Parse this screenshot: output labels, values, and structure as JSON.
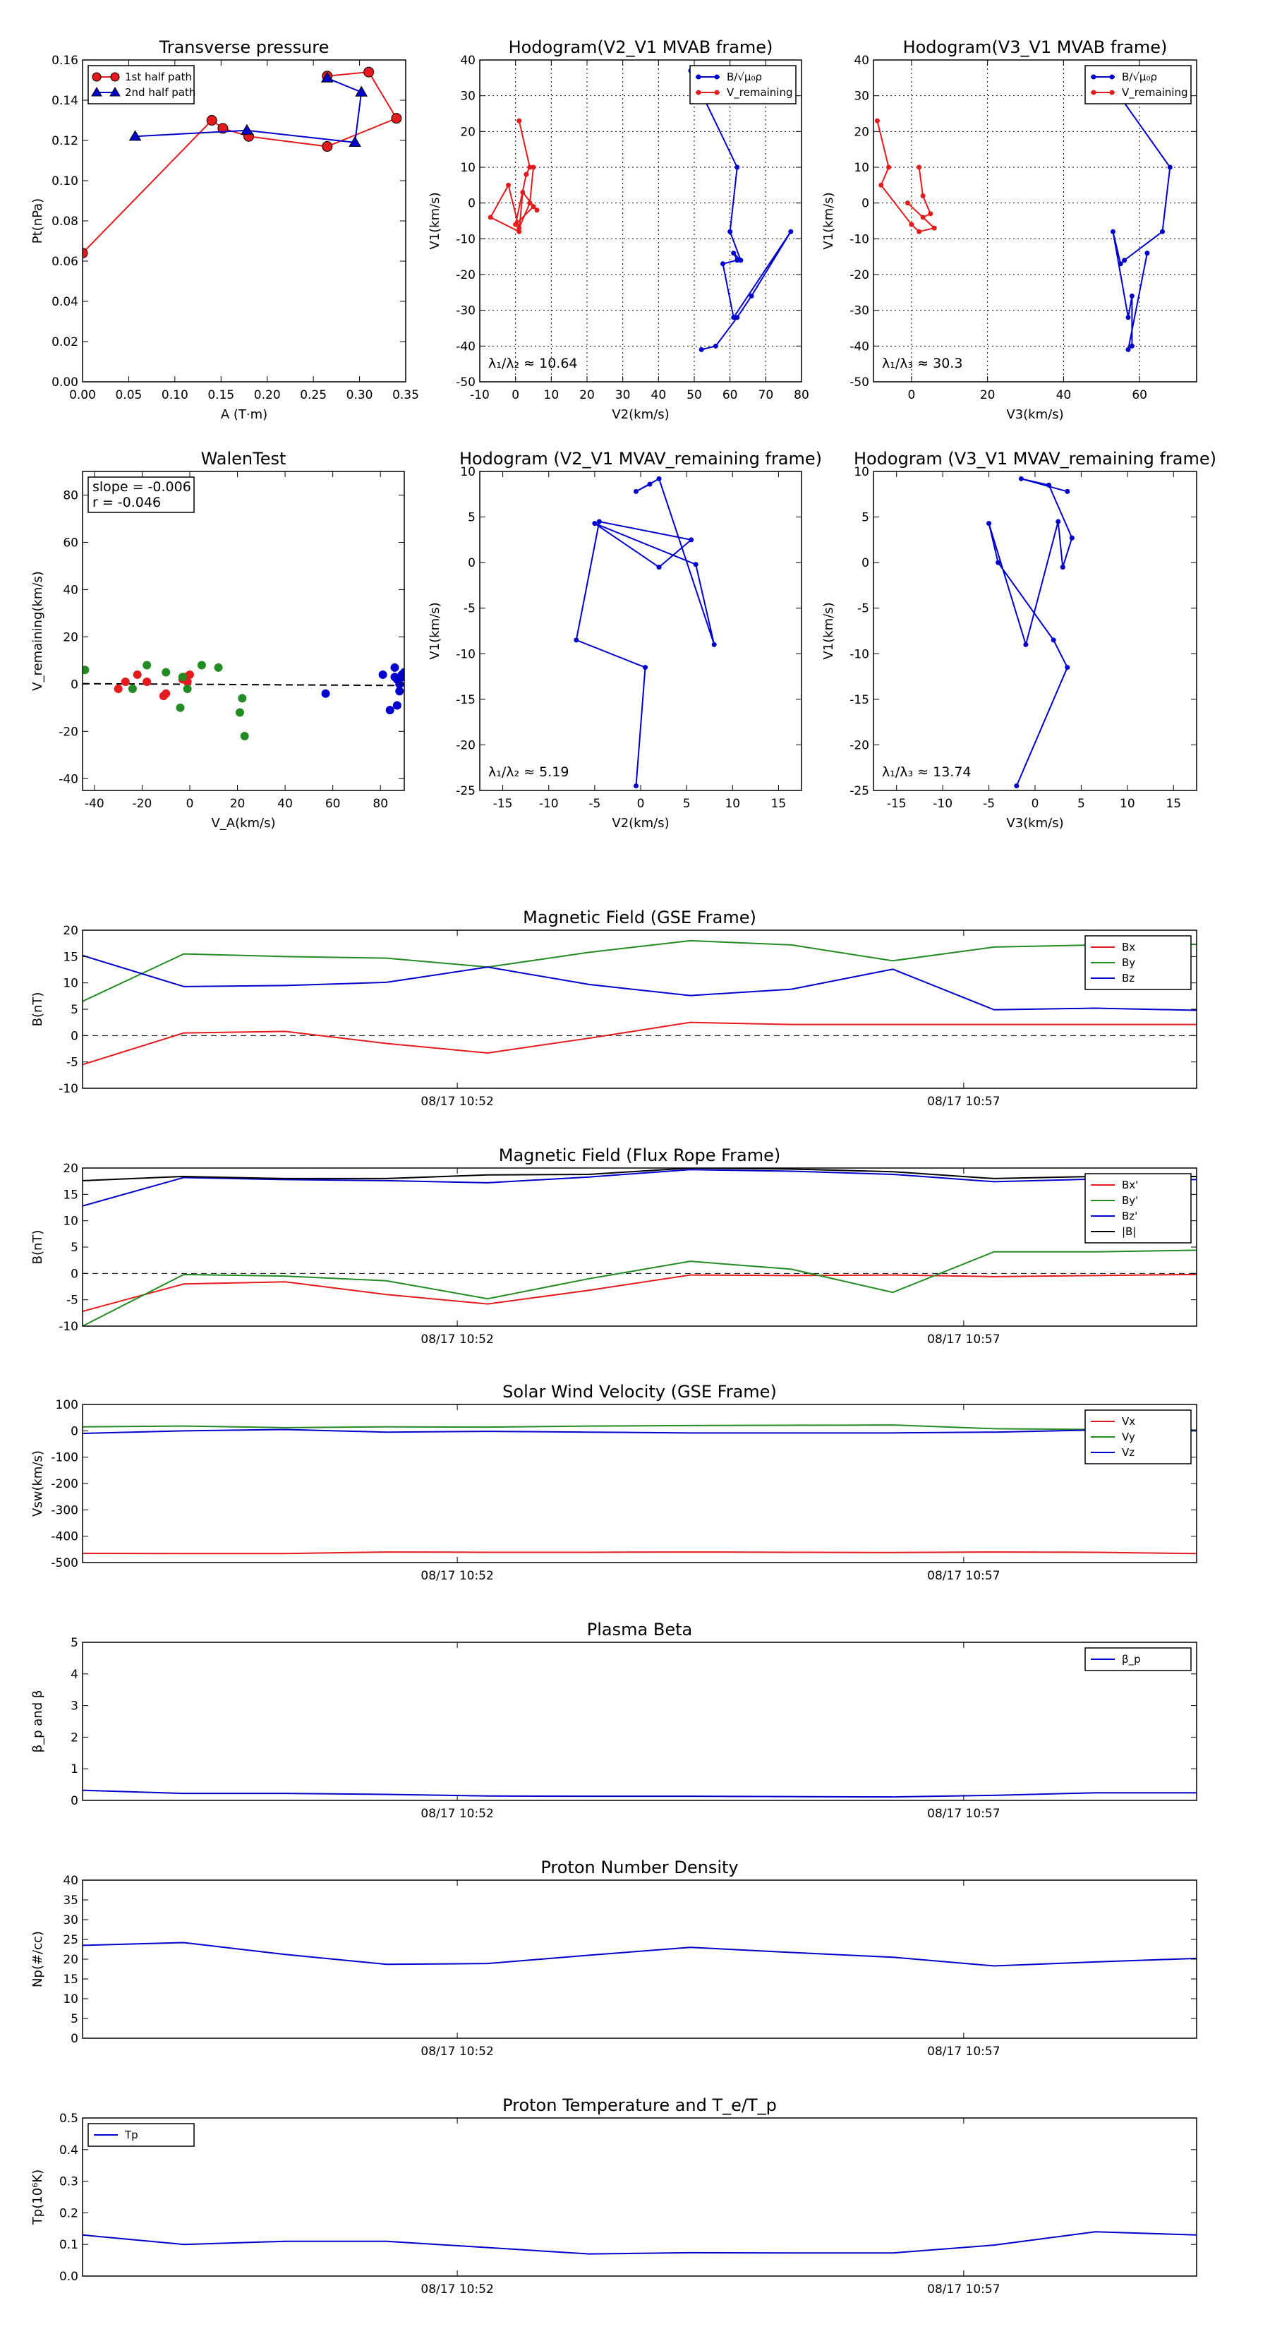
{
  "chart_data": [
    {
      "type": "line",
      "title": "Transverse pressure",
      "xlabel": "A (T·m)",
      "ylabel": "Pt(nPa)",
      "xlim": [
        0,
        0.35
      ],
      "ylim": [
        0,
        0.16
      ],
      "xticks": [
        0,
        0.05,
        0.1,
        0.15,
        0.2,
        0.25,
        0.3,
        0.35
      ],
      "yticks": [
        0,
        0.02,
        0.04,
        0.06,
        0.08,
        0.1,
        0.12,
        0.14,
        0.16
      ],
      "xtick_labels": [
        "0.00",
        "0.05",
        "0.10",
        "0.15",
        "0.20",
        "0.25",
        "0.30",
        "0.35"
      ],
      "ytick_labels": [
        "0.00",
        "0.02",
        "0.04",
        "0.06",
        "0.08",
        "0.10",
        "0.12",
        "0.14",
        "0.16"
      ],
      "grid": false,
      "legend": "upper-left",
      "series": [
        {
          "name": "1st half path",
          "color": "#e41a1c",
          "marker": "circle",
          "line": true,
          "x": [
            0.0,
            0.14,
            0.152,
            0.18,
            0.265,
            0.34,
            0.31,
            0.265
          ],
          "y": [
            0.064,
            0.13,
            0.126,
            0.122,
            0.117,
            0.131,
            0.154,
            0.152
          ]
        },
        {
          "name": "2nd half path",
          "color": "#0000cc",
          "marker": "triangle",
          "line": true,
          "x": [
            0.057,
            0.178,
            0.295,
            0.302,
            0.265
          ],
          "y": [
            0.122,
            0.125,
            0.119,
            0.144,
            0.151
          ]
        }
      ]
    },
    {
      "type": "line",
      "title": "Hodogram(V2_V1 MVAB frame)",
      "xlabel": "V2(km/s)",
      "ylabel": "V1(km/s)",
      "xlim": [
        -10,
        80
      ],
      "ylim": [
        -50,
        40
      ],
      "xticks": [
        -10,
        0,
        10,
        20,
        30,
        40,
        50,
        60,
        70,
        80
      ],
      "yticks": [
        -50,
        -40,
        -30,
        -20,
        -10,
        0,
        10,
        20,
        30,
        40
      ],
      "grid": true,
      "legend": "upper-right",
      "annotation": "λ₁/λ₂ ≈ 10.64",
      "series": [
        {
          "name": "B/√μ₀ρ",
          "color": "#0000cc",
          "marker": "dot",
          "line": true,
          "x": [
            49,
            62,
            60,
            63,
            61,
            62,
            58,
            61,
            77,
            66,
            62,
            56,
            52
          ],
          "y": [
            37,
            10,
            -8,
            -16,
            -14,
            -16,
            -17,
            -32,
            -8,
            -26,
            -32,
            -40,
            -41
          ]
        },
        {
          "name": "V_remaining",
          "color": "#e41a1c",
          "marker": "dot",
          "line": true,
          "x": [
            1,
            4,
            3,
            0,
            5,
            6,
            2,
            1,
            -7,
            -2,
            1,
            4,
            5
          ],
          "y": [
            23,
            10,
            8,
            -6,
            -1,
            -2,
            3,
            -8,
            -4,
            5,
            -7,
            0,
            10
          ]
        }
      ]
    },
    {
      "type": "line",
      "title": "Hodogram(V3_V1 MVAB frame)",
      "xlabel": "V3(km/s)",
      "ylabel": "V1(km/s)",
      "xlim": [
        -10,
        75
      ],
      "ylim": [
        -50,
        40
      ],
      "xticks": [
        0,
        20,
        40,
        60
      ],
      "yticks": [
        -50,
        -40,
        -30,
        -20,
        -10,
        0,
        10,
        20,
        30,
        40
      ],
      "grid": true,
      "legend": "upper-right",
      "annotation": "λ₁/λ₃ ≈ 30.3",
      "series": [
        {
          "name": "B/√μ₀ρ",
          "color": "#0000cc",
          "marker": "dot",
          "line": true,
          "x": [
            50,
            68,
            66,
            56,
            55,
            53,
            57,
            58,
            58,
            57,
            62
          ],
          "y": [
            37,
            10,
            -8,
            -16,
            -17,
            -8,
            -32,
            -26,
            -40,
            -41,
            -14
          ]
        },
        {
          "name": "V_remaining",
          "color": "#e41a1c",
          "marker": "dot",
          "line": true,
          "x": [
            -9,
            -6,
            -8,
            0,
            2,
            6,
            -1,
            3,
            5,
            3,
            2
          ],
          "y": [
            23,
            10,
            5,
            -6,
            -8,
            -7,
            0,
            -4,
            -3,
            2,
            10
          ]
        }
      ]
    },
    {
      "type": "scatter",
      "title": "WalenTest",
      "xlabel": "V_A(km/s)",
      "ylabel": "V_remaining(km/s)",
      "xlim": [
        -45,
        90
      ],
      "ylim": [
        -45,
        90
      ],
      "xticks": [
        -40,
        -20,
        0,
        20,
        40,
        60,
        80
      ],
      "yticks": [
        -40,
        -20,
        0,
        20,
        40,
        60,
        80
      ],
      "grid": false,
      "fit_line": "dashed",
      "annotation_lines": [
        "slope = -0.006",
        "r = -0.046"
      ],
      "series": [
        {
          "color": "#e41a1c",
          "x": [
            -30,
            -27,
            -22,
            -18,
            -11,
            -10,
            -3,
            -2,
            -1,
            0
          ],
          "y": [
            -2,
            1,
            4,
            1,
            -5,
            -4,
            2,
            3,
            1,
            4
          ]
        },
        {
          "color": "#228b22",
          "x": [
            -44,
            -24,
            -18,
            -10,
            -4,
            -3,
            -1,
            5,
            12,
            21,
            22,
            23
          ],
          "y": [
            6,
            -2,
            8,
            5,
            -10,
            3,
            -2,
            8,
            7,
            -12,
            -6,
            -22
          ]
        },
        {
          "color": "#0000cc",
          "x": [
            57,
            81,
            84,
            86,
            86,
            87,
            87,
            88,
            88,
            89,
            89,
            90
          ],
          "y": [
            -4,
            4,
            -11,
            3,
            7,
            2,
            -9,
            -3,
            0,
            3,
            4,
            5
          ]
        }
      ]
    },
    {
      "type": "line",
      "title": "Hodogram (V2_V1 MVAV_remaining frame)",
      "xlabel": "V2(km/s)",
      "ylabel": "V1(km/s)",
      "xlim": [
        -17.5,
        17.5
      ],
      "ylim": [
        -25,
        10
      ],
      "xticks": [
        -15,
        -10,
        -5,
        0,
        5,
        10,
        15
      ],
      "yticks": [
        -25,
        -20,
        -15,
        -10,
        -5,
        0,
        5,
        10
      ],
      "grid": false,
      "annotation": "λ₁/λ₂ ≈ 5.19",
      "series": [
        {
          "color": "#0000cc",
          "marker": "dot",
          "line": true,
          "x": [
            -0.5,
            0.5,
            -7,
            -4.5,
            5.5,
            2,
            -5,
            6,
            8,
            2,
            -0.5,
            1
          ],
          "y": [
            -24.5,
            -11.5,
            -8.5,
            4.5,
            2.5,
            -0.5,
            4.3,
            -0.2,
            -9,
            9.2,
            7.8,
            8.6
          ]
        }
      ]
    },
    {
      "type": "line",
      "title": "Hodogram (V3_V1 MVAV_remaining frame)",
      "xlabel": "V3(km/s)",
      "ylabel": "V1(km/s)",
      "xlim": [
        -17.5,
        17.5
      ],
      "ylim": [
        -25,
        10
      ],
      "xticks": [
        -15,
        -10,
        -5,
        0,
        5,
        10,
        15
      ],
      "yticks": [
        -25,
        -20,
        -15,
        -10,
        -5,
        0,
        5,
        10
      ],
      "grid": false,
      "annotation": "λ₁/λ₃ ≈ 13.74",
      "series": [
        {
          "color": "#0000cc",
          "marker": "dot",
          "line": true,
          "x": [
            -2,
            3.5,
            2,
            -4,
            -5,
            -1,
            2.5,
            3,
            4,
            1.5,
            -1.5,
            3.5
          ],
          "y": [
            -24.5,
            -11.5,
            -8.5,
            0,
            4.3,
            -9,
            4.5,
            -0.5,
            2.7,
            8.5,
            9.2,
            7.8
          ]
        }
      ]
    },
    {
      "type": "line",
      "title": "Magnetic Field (GSE Frame)",
      "ylabel": "B(nT)",
      "ylim": [
        -10,
        20
      ],
      "yticks": [
        -10,
        -5,
        0,
        5,
        10,
        15,
        20
      ],
      "zero_line": "dashed",
      "xtick_labels": [
        "08/17 10:52",
        "08/17 10:57"
      ],
      "xtick_positions": [
        3.7,
        8.7
      ],
      "x": [
        0,
        1,
        2,
        3,
        4,
        5,
        6,
        7,
        8,
        9,
        10,
        11
      ],
      "legend": "upper-right",
      "series": [
        {
          "name": "Bx",
          "color": "#e41a1c",
          "values": [
            -5.5,
            0.5,
            0.8,
            -1.5,
            -3.3,
            -0.5,
            2.5,
            2.1,
            2.1,
            2.1,
            2.1,
            2.1
          ]
        },
        {
          "name": "By",
          "color": "#228b22",
          "values": [
            6.5,
            15.5,
            15.0,
            14.7,
            13.0,
            15.8,
            18.0,
            17.2,
            14.2,
            16.8,
            17.2,
            17.3
          ]
        },
        {
          "name": "Bz",
          "color": "#0000cc",
          "values": [
            15.2,
            9.3,
            9.5,
            10.1,
            13.0,
            9.7,
            7.6,
            8.8,
            12.6,
            4.9,
            5.2,
            4.8
          ]
        }
      ]
    },
    {
      "type": "line",
      "title": "Magnetic Field (Flux Rope Frame)",
      "ylabel": "B(nT)",
      "ylim": [
        -10,
        20
      ],
      "yticks": [
        -10,
        -5,
        0,
        5,
        10,
        15,
        20
      ],
      "zero_line": "dashed",
      "xtick_labels": [
        "08/17 10:52",
        "08/17 10:57"
      ],
      "xtick_positions": [
        3.7,
        8.7
      ],
      "x": [
        0,
        1,
        2,
        3,
        4,
        5,
        6,
        7,
        8,
        9,
        10,
        11
      ],
      "legend": "upper-right",
      "series": [
        {
          "name": "Bx'",
          "color": "#e41a1c",
          "values": [
            -7.2,
            -2.0,
            -1.6,
            -4.0,
            -5.8,
            -3.2,
            -0.3,
            -0.4,
            -0.3,
            -0.6,
            -0.4,
            -0.2
          ]
        },
        {
          "name": "By'",
          "color": "#228b22",
          "values": [
            -10,
            -0.2,
            -0.5,
            -1.4,
            -4.8,
            -1.0,
            2.3,
            0.8,
            -3.6,
            4.1,
            4.1,
            4.4
          ]
        },
        {
          "name": "Bz'",
          "color": "#0000cc",
          "values": [
            12.8,
            18.2,
            17.8,
            17.6,
            17.2,
            18.3,
            19.7,
            19.4,
            18.8,
            17.4,
            17.9,
            17.8
          ]
        },
        {
          "name": "|B|",
          "color": "#000000",
          "values": [
            17.6,
            18.4,
            18.0,
            18.0,
            18.7,
            18.8,
            20.0,
            19.8,
            19.3,
            18.0,
            18.4,
            18.4
          ]
        }
      ]
    },
    {
      "type": "line",
      "title": "Solar Wind Velocity (GSE Frame)",
      "ylabel": "Vsw(km/s)",
      "ylim": [
        -500,
        100
      ],
      "yticks": [
        -500,
        -400,
        -300,
        -200,
        -100,
        0,
        100
      ],
      "xtick_labels": [
        "08/17 10:52",
        "08/17 10:57"
      ],
      "xtick_positions": [
        3.7,
        8.7
      ],
      "x": [
        0,
        1,
        2,
        3,
        4,
        5,
        6,
        7,
        8,
        9,
        10,
        11
      ],
      "legend": "upper-right",
      "series": [
        {
          "name": "Vx",
          "color": "#e41a1c",
          "values": [
            -465,
            -466,
            -466,
            -460,
            -461,
            -461,
            -460,
            -461,
            -462,
            -460,
            -461,
            -466
          ]
        },
        {
          "name": "Vy",
          "color": "#228b22",
          "values": [
            15,
            18,
            12,
            15,
            14,
            18,
            20,
            21,
            22,
            8,
            5,
            3
          ]
        },
        {
          "name": "Vz",
          "color": "#0000cc",
          "values": [
            -10,
            0,
            5,
            -5,
            -2,
            -5,
            -8,
            -8,
            -8,
            -5,
            3,
            0
          ]
        }
      ]
    },
    {
      "type": "line",
      "title": "Plasma Beta",
      "ylabel": "β_p and β",
      "ylim": [
        0,
        5
      ],
      "yticks": [
        0,
        1,
        2,
        3,
        4,
        5
      ],
      "xtick_labels": [
        "08/17 10:52",
        "08/17 10:57"
      ],
      "xtick_positions": [
        3.7,
        8.7
      ],
      "x": [
        0,
        1,
        2,
        3,
        4,
        5,
        6,
        7,
        8,
        9,
        10,
        11
      ],
      "legend": "upper-right",
      "series": [
        {
          "name": "β_p",
          "color": "#0000cc",
          "values": [
            0.32,
            0.22,
            0.22,
            0.19,
            0.14,
            0.13,
            0.13,
            0.12,
            0.11,
            0.16,
            0.24,
            0.24
          ]
        }
      ]
    },
    {
      "type": "line",
      "title": "Proton Number Density",
      "ylabel": "Np(#/cc)",
      "ylim": [
        0,
        40
      ],
      "yticks": [
        0,
        5,
        10,
        15,
        20,
        25,
        30,
        35,
        40
      ],
      "xtick_labels": [
        "08/17 10:52",
        "08/17 10:57"
      ],
      "xtick_positions": [
        3.7,
        8.7
      ],
      "x": [
        0,
        1,
        2,
        3,
        4,
        5,
        6,
        7,
        8,
        9,
        10,
        11
      ],
      "series": [
        {
          "color": "#0000cc",
          "values": [
            23.5,
            24.2,
            21.2,
            18.7,
            18.9,
            21.0,
            23.0,
            21.7,
            20.5,
            18.3,
            19.3,
            20.2
          ]
        }
      ]
    },
    {
      "type": "line",
      "title": "Proton Temperature and T_e/T_p",
      "ylabel": "Tp(10⁶K)",
      "ylim": [
        0,
        0.5
      ],
      "yticks": [
        0,
        0.1,
        0.2,
        0.3,
        0.4,
        0.5
      ],
      "ytick_labels": [
        "0.0",
        "0.1",
        "0.2",
        "0.3",
        "0.4",
        "0.5"
      ],
      "xtick_labels": [
        "08/17 10:52",
        "08/17 10:57"
      ],
      "xtick_positions": [
        3.7,
        8.7
      ],
      "x": [
        0,
        1,
        2,
        3,
        4,
        5,
        6,
        7,
        8,
        9,
        10,
        11
      ],
      "legend": "upper-left",
      "series": [
        {
          "name": "Tp",
          "color": "#0000cc",
          "values": [
            0.13,
            0.1,
            0.11,
            0.11,
            0.09,
            0.07,
            0.074,
            0.073,
            0.073,
            0.098,
            0.14,
            0.13
          ]
        }
      ]
    }
  ]
}
